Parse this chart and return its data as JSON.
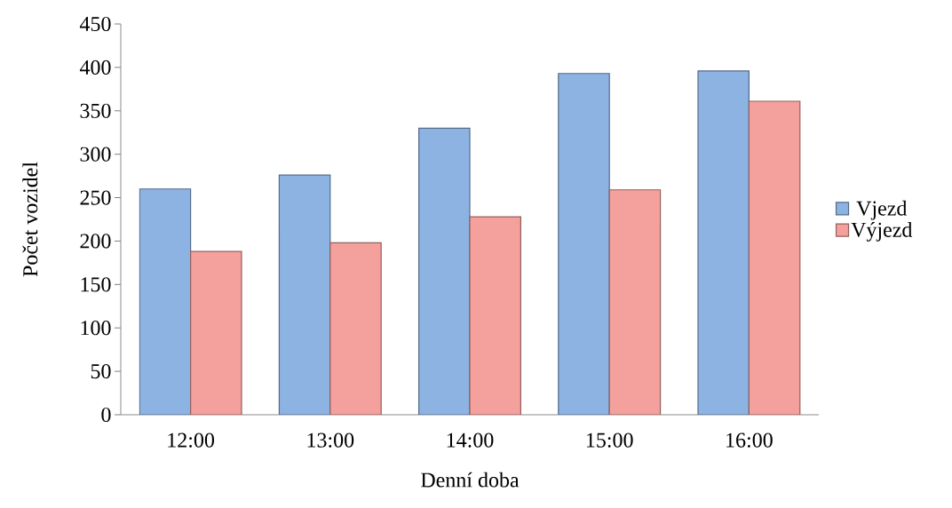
{
  "chart_data": {
    "type": "bar",
    "xlabel": "Denní doba",
    "ylabel": "Počet vozidel",
    "categories": [
      "12:00",
      "13:00",
      "14:00",
      "15:00",
      "16:00"
    ],
    "series": [
      {
        "name": "Vjezd",
        "color": "#8db3e2",
        "values": [
          260,
          276,
          330,
          393,
          396
        ]
      },
      {
        "name": "Výjezd",
        "color": "#f4a09c",
        "values": [
          188,
          198,
          228,
          259,
          361
        ]
      }
    ],
    "ylim": [
      0,
      450
    ],
    "yticks": [
      0,
      50,
      100,
      150,
      200,
      250,
      300,
      350,
      400,
      450
    ],
    "grid": false,
    "legend": "right"
  }
}
